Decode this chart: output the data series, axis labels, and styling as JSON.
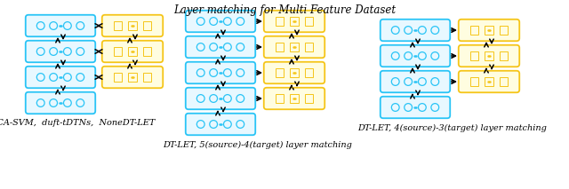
{
  "title": "Layer matching for Multi Feature Dataset",
  "title_fontsize": 8.5,
  "bg_color": "#ffffff",
  "cyan_color": "#29c4f6",
  "yellow_color": "#f5c518",
  "cyan_fill": "#e8f8ff",
  "yellow_fill": "#fffde0",
  "caption_left": "DCCA-SVM,  duft-tDTNs,  NoneDT-LET",
  "caption_mid": "DT-LET, 5(source)-4(target) layer matching",
  "caption_right": "DT-LET, 4(source)-3(target) layer matching",
  "caption_fontsize": 7.0
}
